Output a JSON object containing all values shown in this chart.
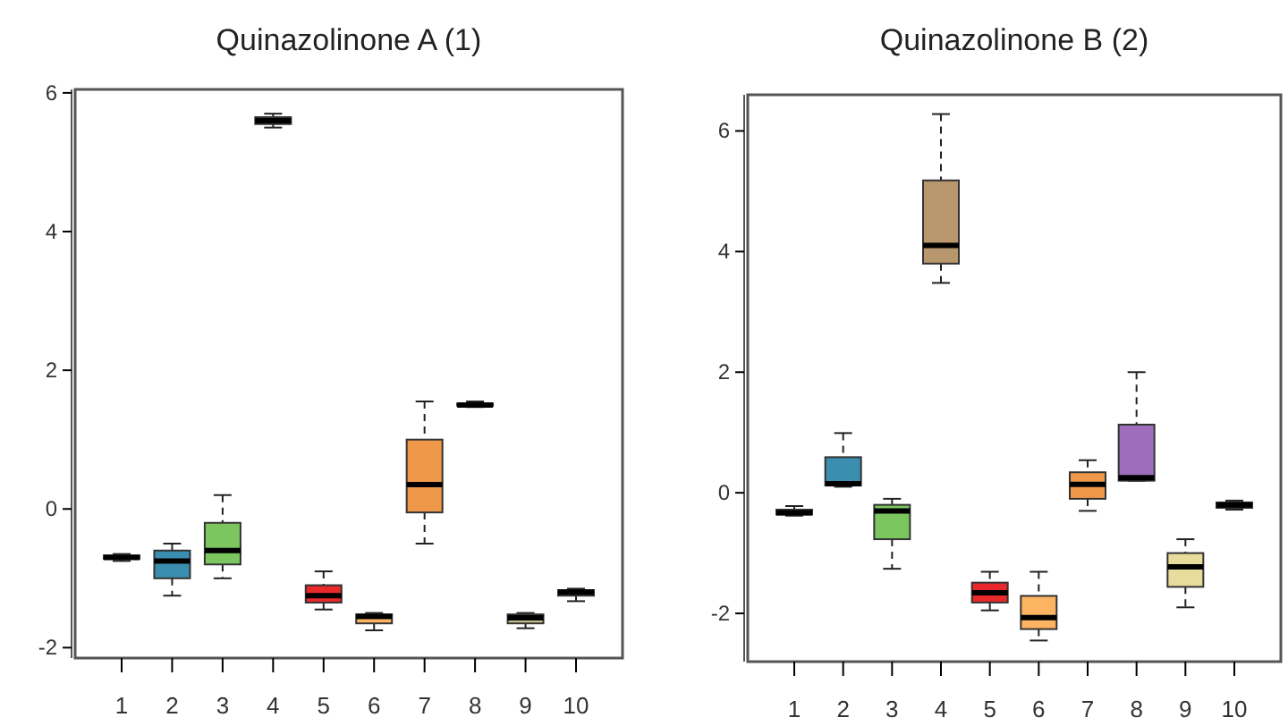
{
  "chart_data": [
    {
      "type": "box",
      "title": "Quinazolinone A (1)",
      "categories": [
        "1",
        "2",
        "3",
        "4",
        "5",
        "6",
        "7",
        "8",
        "9",
        "10"
      ],
      "colors": [
        "#6e6e6e",
        "#3a8fb0",
        "#7cc660",
        "#b8966e",
        "#e8282a",
        "#fdb462",
        "#f0984a",
        "#d2b48c",
        "#c8c08a",
        "#8c5a2c"
      ],
      "ylim": [
        -2.15,
        6.05
      ],
      "yticks": [
        -2,
        0,
        2,
        4,
        6
      ],
      "grid": false,
      "boxes": [
        {
          "low": -0.75,
          "q1": -0.72,
          "median": -0.7,
          "q3": -0.67,
          "high": -0.65
        },
        {
          "low": -1.25,
          "q1": -1.0,
          "median": -0.75,
          "q3": -0.6,
          "high": -0.5
        },
        {
          "low": -1.0,
          "q1": -0.8,
          "median": -0.6,
          "q3": -0.2,
          "high": 0.2
        },
        {
          "low": 5.5,
          "q1": 5.55,
          "median": 5.6,
          "q3": 5.65,
          "high": 5.7
        },
        {
          "low": -1.45,
          "q1": -1.35,
          "median": -1.25,
          "q3": -1.1,
          "high": -0.9
        },
        {
          "low": -1.75,
          "q1": -1.65,
          "median": -1.55,
          "q3": -1.52,
          "high": -1.5
        },
        {
          "low": -0.5,
          "q1": -0.05,
          "median": 0.35,
          "q3": 1.0,
          "high": 1.55
        },
        {
          "low": 1.47,
          "q1": 1.49,
          "median": 1.5,
          "q3": 1.52,
          "high": 1.55
        },
        {
          "low": -1.72,
          "q1": -1.65,
          "median": -1.57,
          "q3": -1.52,
          "high": -1.5
        },
        {
          "low": -1.33,
          "q1": -1.25,
          "median": -1.2,
          "q3": -1.17,
          "high": -1.15
        }
      ]
    },
    {
      "type": "box",
      "title": "Quinazolinone B (2)",
      "categories": [
        "1",
        "2",
        "3",
        "4",
        "5",
        "6",
        "7",
        "8",
        "9",
        "10"
      ],
      "colors": [
        "#6e6e6e",
        "#3a8fb0",
        "#7cc660",
        "#b8966e",
        "#e8282a",
        "#fdb462",
        "#f0984a",
        "#9e6ebd",
        "#e8dc9c",
        "#8c5a2c"
      ],
      "ylim": [
        -2.8,
        6.6
      ],
      "yticks": [
        -2,
        0,
        2,
        4,
        6
      ],
      "grid": false,
      "boxes": [
        {
          "low": -0.38,
          "q1": -0.36,
          "median": -0.33,
          "q3": -0.28,
          "high": -0.22
        },
        {
          "low": 0.1,
          "q1": 0.12,
          "median": 0.15,
          "q3": 0.59,
          "high": 0.99
        },
        {
          "low": -1.26,
          "q1": -0.77,
          "median": -0.3,
          "q3": -0.2,
          "high": -0.1
        },
        {
          "low": 3.48,
          "q1": 3.8,
          "median": 4.1,
          "q3": 5.18,
          "high": 6.28
        },
        {
          "low": -1.95,
          "q1": -1.82,
          "median": -1.66,
          "q3": -1.49,
          "high": -1.31
        },
        {
          "low": -2.45,
          "q1": -2.26,
          "median": -2.07,
          "q3": -1.71,
          "high": -1.31
        },
        {
          "low": -0.3,
          "q1": -0.1,
          "median": 0.14,
          "q3": 0.34,
          "high": 0.54
        },
        {
          "low": 0.2,
          "q1": 0.2,
          "median": 0.25,
          "q3": 1.13,
          "high": 2.0
        },
        {
          "low": -1.9,
          "q1": -1.56,
          "median": -1.23,
          "q3": -1.0,
          "high": -0.77
        },
        {
          "low": -0.28,
          "q1": -0.25,
          "median": -0.2,
          "q3": -0.16,
          "high": -0.13
        }
      ]
    }
  ]
}
